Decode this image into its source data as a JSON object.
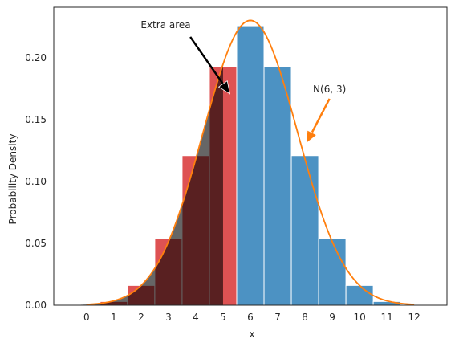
{
  "chart_data": {
    "type": "bar",
    "xlabel": "x",
    "ylabel": "Probability Density",
    "xlim": [
      -1.2,
      13.2
    ],
    "ylim": [
      0,
      0.241
    ],
    "x_ticks": [
      0,
      1,
      2,
      3,
      4,
      5,
      6,
      7,
      8,
      9,
      10,
      11,
      12
    ],
    "y_ticks": [
      0.0,
      0.05,
      0.1,
      0.15,
      0.2
    ],
    "y_tick_labels": [
      "0.00",
      "0.05",
      "0.10",
      "0.15",
      "0.20"
    ],
    "grid": false,
    "colors": {
      "bar_left": "#d62728",
      "bar_right": "#1f77b4",
      "curve": "#ff7f0e",
      "shade": "#000000"
    },
    "histogram": {
      "bin_width": 1,
      "x": [
        0,
        1,
        2,
        3,
        4,
        5,
        6,
        7,
        8,
        9,
        10,
        11,
        12
      ],
      "values": [
        0.0002,
        0.003,
        0.016,
        0.054,
        0.121,
        0.193,
        0.226,
        0.193,
        0.121,
        0.054,
        0.016,
        0.003,
        0.0002
      ]
    },
    "curve": {
      "label": "N(6, 3)",
      "mean": 6,
      "variance": 3,
      "x_range": [
        0,
        12
      ]
    },
    "shaded_region": {
      "x_from": -0.5,
      "x_to": 5
    },
    "annotations": [
      {
        "text": "Extra area",
        "text_at": [
          2.9,
          0.224
        ],
        "arrow_from": [
          3.8,
          0.217
        ],
        "arrow_to": [
          5.25,
          0.171
        ],
        "color": "#000000"
      },
      {
        "text": "N(6, 3)",
        "text_at": [
          8.9,
          0.172
        ],
        "arrow_from": [
          8.9,
          0.167
        ],
        "arrow_to": [
          8.05,
          0.131
        ],
        "color": "#ff7f0e"
      }
    ]
  }
}
